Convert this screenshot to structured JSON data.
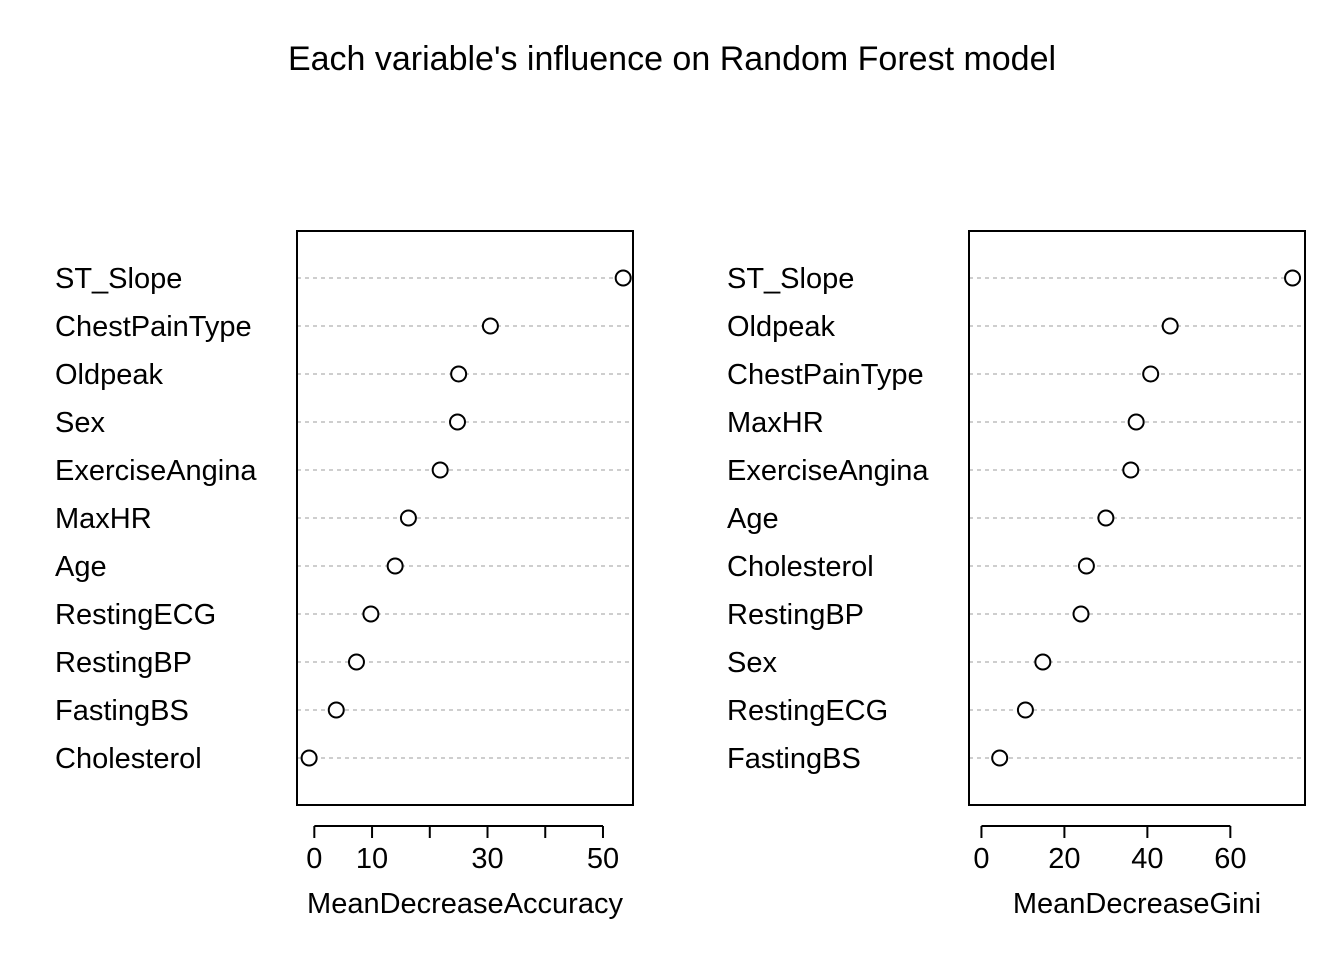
{
  "chart_data": [
    {
      "type": "scatter",
      "title": "Each variable's influence on Random Forest model",
      "xlabel": "MeanDecreaseAccuracy",
      "xlim": [
        -3,
        55.2
      ],
      "xticks": [
        0,
        10,
        20,
        30,
        40,
        50
      ],
      "xtick_labels": [
        "0",
        "10",
        "",
        "30",
        "",
        "50"
      ],
      "categories": [
        "ST_Slope",
        "ChestPainType",
        "Oldpeak",
        "Sex",
        "ExerciseAngina",
        "MaxHR",
        "Age",
        "RestingECG",
        "RestingBP",
        "FastingBS",
        "Cholesterol"
      ],
      "values": [
        53.5,
        30.5,
        25.0,
        24.8,
        21.8,
        16.3,
        14.0,
        9.8,
        7.3,
        3.8,
        -0.9
      ],
      "grid": true,
      "point_color": "#000000"
    },
    {
      "type": "scatter",
      "xlabel": "MeanDecreaseGini",
      "xlim": [
        -3,
        78
      ],
      "xticks": [
        0,
        20,
        40,
        60
      ],
      "xtick_labels": [
        "0",
        "20",
        "40",
        "60"
      ],
      "categories": [
        "ST_Slope",
        "Oldpeak",
        "ChestPainType",
        "MaxHR",
        "ExerciseAngina",
        "Age",
        "Cholesterol",
        "RestingBP",
        "Sex",
        "RestingECG",
        "FastingBS"
      ],
      "values": [
        75.0,
        45.5,
        40.8,
        37.3,
        36.0,
        30.0,
        25.3,
        24.0,
        14.8,
        10.6,
        4.4
      ],
      "grid": true,
      "point_color": "#000000"
    }
  ]
}
